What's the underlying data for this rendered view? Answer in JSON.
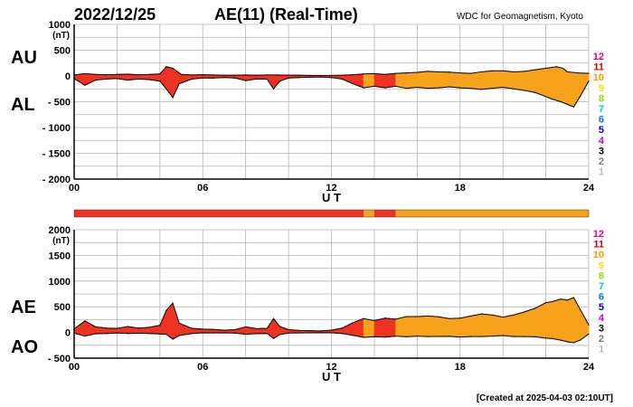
{
  "header": {
    "date": "2022/12/25",
    "index_title": "AE(11) (Real-Time)",
    "source": "WDC for Geomagnetism, Kyoto"
  },
  "footer": {
    "created": "[Created at 2025-04-03 02:10UT]"
  },
  "colors": {
    "level_12": "#e6007e",
    "level_11": "#e00000",
    "level_10": "#ff9900",
    "level_9": "#ffdd00",
    "level_8": "#99dd00",
    "level_7": "#00cccc",
    "level_6": "#0077ff",
    "level_5": "#0000aa",
    "level_4": "#cc00cc",
    "level_3": "#000000",
    "level_2": "#777777",
    "level_1": "#bbbbbb",
    "fill_red": "#ee3322",
    "fill_orange": "#f7a21b"
  },
  "chart_data": [
    {
      "panel": "AU / AL",
      "type": "area",
      "series": [
        {
          "name": "AU",
          "x": [
            0,
            0.5,
            1,
            1.5,
            2,
            2.5,
            3,
            3.5,
            4,
            4.3,
            4.6,
            5,
            5.5,
            6,
            6.5,
            7,
            7.5,
            8,
            8.5,
            9,
            9.5,
            10,
            10.5,
            11,
            11.5,
            12,
            12.5,
            13,
            13.5,
            14,
            14.5,
            15,
            15.5,
            16,
            16.5,
            17,
            17.5,
            18,
            18.5,
            19,
            19.5,
            20,
            20.5,
            21,
            21.5,
            22,
            22.5,
            22.8,
            23,
            23.5,
            24
          ],
          "values": [
            20,
            45,
            30,
            25,
            30,
            35,
            25,
            30,
            40,
            180,
            150,
            30,
            20,
            25,
            20,
            15,
            15,
            20,
            15,
            20,
            20,
            15,
            15,
            10,
            10,
            10,
            15,
            25,
            40,
            45,
            30,
            50,
            60,
            70,
            90,
            80,
            75,
            60,
            50,
            80,
            100,
            100,
            80,
            90,
            120,
            150,
            180,
            150,
            80,
            60,
            50
          ]
        },
        {
          "name": "AL",
          "x": [
            0,
            0.5,
            1,
            1.5,
            2,
            2.5,
            3,
            3.5,
            4,
            4.3,
            4.6,
            4.9,
            5.5,
            6,
            6.5,
            7,
            7.5,
            8,
            8.5,
            9,
            9.3,
            9.6,
            10,
            10.5,
            11,
            11.5,
            12,
            12.5,
            13,
            13.5,
            14,
            14.5,
            15,
            15.5,
            16,
            16.5,
            17,
            17.5,
            18,
            18.5,
            19,
            19.5,
            20,
            20.5,
            21,
            21.5,
            22,
            22.3,
            22.7,
            23,
            23.3,
            23.6,
            24
          ],
          "values": [
            -50,
            -180,
            -80,
            -60,
            -50,
            -80,
            -60,
            -70,
            -100,
            -250,
            -420,
            -150,
            -60,
            -40,
            -40,
            -30,
            -40,
            -90,
            -60,
            -60,
            -250,
            -100,
            -40,
            -30,
            -25,
            -20,
            -30,
            -60,
            -150,
            -230,
            -200,
            -230,
            -200,
            -240,
            -220,
            -240,
            -230,
            -210,
            -230,
            -240,
            -260,
            -240,
            -220,
            -250,
            -280,
            -320,
            -400,
            -450,
            -500,
            -550,
            -600,
            -400,
            -100
          ]
        }
      ],
      "level_bands": [
        {
          "from": 0,
          "to": 13.5,
          "level": 11
        },
        {
          "from": 13.5,
          "to": 14,
          "level": 10
        },
        {
          "from": 14,
          "to": 15,
          "level": 11
        },
        {
          "from": 15,
          "to": 24,
          "level": 10
        }
      ],
      "y_labels": [
        "AU",
        "AL"
      ],
      "y_unit": "(nT)",
      "xlabel": "U T",
      "xticks": [
        "00",
        "06",
        "12",
        "18",
        "24"
      ],
      "yticks": [
        "1000",
        "500",
        "0",
        "- 500",
        "- 1000",
        "- 1500",
        "- 2000"
      ],
      "xlim": [
        0,
        24
      ],
      "ylim": [
        -2000,
        1000
      ],
      "grid": true,
      "legend_levels": [
        "12",
        "11",
        "10",
        "9",
        "8",
        "7",
        "6",
        "5",
        "4",
        "3",
        "2",
        "1"
      ]
    },
    {
      "panel": "AE / AO",
      "type": "area",
      "series": [
        {
          "name": "AE",
          "x": [
            0,
            0.5,
            1,
            1.5,
            2,
            2.5,
            3,
            3.5,
            4,
            4.3,
            4.6,
            4.9,
            5.5,
            6,
            6.5,
            7,
            7.5,
            8,
            8.5,
            9,
            9.3,
            9.6,
            10,
            10.5,
            11,
            11.5,
            12,
            12.5,
            13,
            13.5,
            14,
            14.5,
            15,
            15.5,
            16,
            16.5,
            17,
            17.5,
            18,
            18.5,
            19,
            19.5,
            20,
            20.5,
            21,
            21.5,
            22,
            22.3,
            22.7,
            23,
            23.3,
            23.6,
            24
          ],
          "values": [
            70,
            225,
            110,
            85,
            80,
            115,
            85,
            100,
            140,
            430,
            570,
            180,
            80,
            65,
            60,
            45,
            55,
            110,
            75,
            80,
            270,
            115,
            55,
            40,
            35,
            30,
            45,
            85,
            190,
            270,
            230,
            280,
            260,
            310,
            310,
            320,
            305,
            270,
            280,
            320,
            360,
            340,
            300,
            340,
            400,
            470,
            580,
            600,
            650,
            630,
            680,
            450,
            150
          ]
        },
        {
          "name": "AO",
          "x": [
            0,
            0.5,
            1,
            1.5,
            2,
            2.5,
            3,
            3.5,
            4,
            4.3,
            4.6,
            4.9,
            5.5,
            6,
            6.5,
            7,
            7.5,
            8,
            8.5,
            9,
            9.3,
            9.6,
            10,
            10.5,
            11,
            11.5,
            12,
            12.5,
            13,
            13.5,
            14,
            14.5,
            15,
            15.5,
            16,
            16.5,
            17,
            17.5,
            18,
            18.5,
            19,
            19.5,
            20,
            20.5,
            21,
            21.5,
            22,
            22.3,
            22.7,
            23,
            23.3,
            23.6,
            24
          ],
          "values": [
            -15,
            -70,
            -25,
            -20,
            -10,
            -20,
            -15,
            -20,
            -30,
            -35,
            -130,
            -60,
            -20,
            -8,
            -10,
            -8,
            -12,
            -35,
            -22,
            -20,
            -115,
            -40,
            -12,
            -10,
            -8,
            -5,
            -8,
            -20,
            -55,
            -95,
            -85,
            -90,
            -70,
            -85,
            -70,
            -80,
            -78,
            -75,
            -90,
            -80,
            -80,
            -70,
            -60,
            -80,
            -80,
            -85,
            -110,
            -120,
            -150,
            -180,
            -200,
            -150,
            -30
          ]
        }
      ],
      "level_bands": [
        {
          "from": 0,
          "to": 13.5,
          "level": 11
        },
        {
          "from": 13.5,
          "to": 14,
          "level": 10
        },
        {
          "from": 14,
          "to": 15,
          "level": 11
        },
        {
          "from": 15,
          "to": 24,
          "level": 10
        }
      ],
      "y_labels": [
        "AE",
        "AO"
      ],
      "y_unit": "(nT)",
      "xlabel": "U T",
      "xticks": [
        "00",
        "06",
        "12",
        "18",
        "24"
      ],
      "yticks": [
        "2000",
        "1500",
        "1000",
        "500",
        "0",
        "- 500"
      ],
      "xlim": [
        0,
        24
      ],
      "ylim": [
        -500,
        2000
      ],
      "grid": true,
      "legend_levels": [
        "12",
        "11",
        "10",
        "9",
        "8",
        "7",
        "6",
        "5",
        "4",
        "3",
        "2",
        "1"
      ]
    }
  ]
}
